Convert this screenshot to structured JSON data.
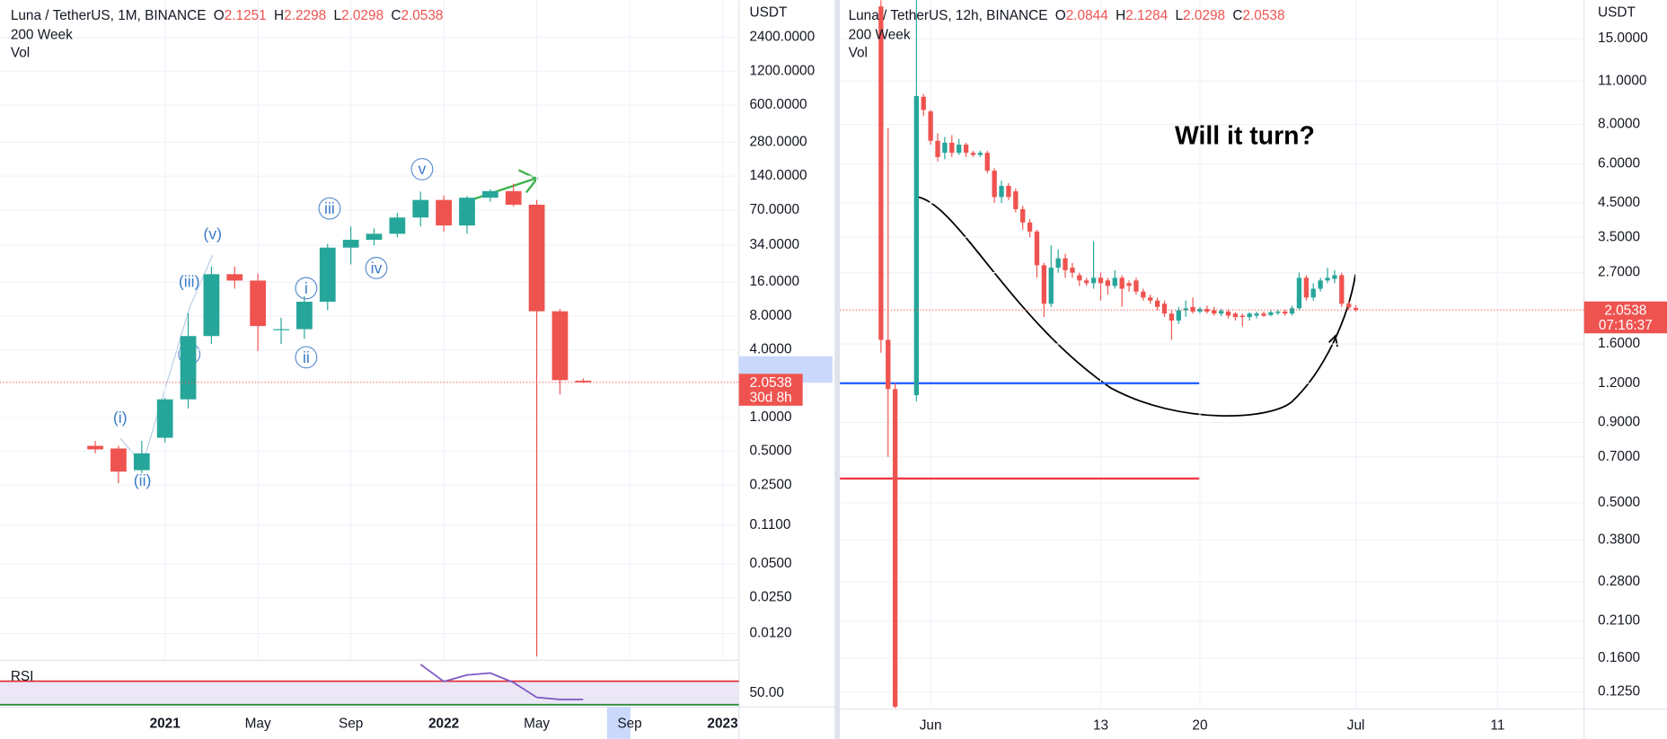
{
  "chart_data": [
    {
      "type": "candlestick",
      "title": "Luna / TetherUS, 1M, BINANCE",
      "ohlc_labels": [
        "O",
        "H",
        "L",
        "C"
      ],
      "indicators": [
        "200 Week",
        "Vol"
      ],
      "axis_unit": "USDT",
      "countdown": "30d 8h",
      "log_scale": true,
      "grid": true,
      "up_color": "#26a69a",
      "down_color": "#ef5350",
      "x": [
        0,
        1,
        2,
        3,
        4,
        5,
        6,
        7,
        8,
        9,
        10,
        11,
        12,
        13,
        14,
        15,
        16,
        17,
        18,
        19,
        20,
        21
      ],
      "open": [
        0.56,
        0.53,
        0.34,
        0.66,
        1.45,
        5.3,
        18.8,
        16.5,
        6,
        6.1,
        10.7,
        32.4,
        38,
        43,
        60,
        86,
        51,
        90,
        103,
        78,
        8.8,
        2.1251
      ],
      "high": [
        0.62,
        0.56,
        0.62,
        1.5,
        8.5,
        22,
        22,
        19,
        7.7,
        12,
        35,
        50,
        48,
        66,
        102,
        94,
        93,
        107,
        120,
        86,
        9.2,
        2.2298
      ],
      "low": [
        0.48,
        0.26,
        0.32,
        0.6,
        1.2,
        4.5,
        14,
        3.9,
        4.5,
        5,
        9,
        23,
        34,
        40,
        50,
        45,
        43,
        83,
        75,
        0.0075,
        1.6,
        2.0298
      ],
      "close": [
        0.52,
        0.33,
        0.48,
        1.45,
        5.3,
        18.8,
        16.5,
        6.5,
        6.1,
        10.7,
        32.4,
        38,
        43,
        60,
        86,
        51,
        90,
        103,
        78,
        8.8,
        2.15,
        2.0538
      ],
      "xlim": [
        -4.1,
        27.7
      ],
      "xticks": [
        {
          "value": 3,
          "label": "2021"
        },
        {
          "value": 7,
          "label": "May"
        },
        {
          "value": 11,
          "label": "Sep"
        },
        {
          "value": 15,
          "label": "2022"
        },
        {
          "value": 19,
          "label": "May"
        },
        {
          "value": 23,
          "label": "Sep"
        },
        {
          "value": 27,
          "label": "2023"
        }
      ],
      "ylim": [
        0.0071,
        5140
      ],
      "yticks": [
        {
          "value": 2400,
          "label": "2400.0000"
        },
        {
          "value": 1200,
          "label": "1200.0000"
        },
        {
          "value": 600,
          "label": "600.0000"
        },
        {
          "value": 280,
          "label": "280.0000"
        },
        {
          "value": 140,
          "label": "140.0000"
        },
        {
          "value": 70,
          "label": "70.0000"
        },
        {
          "value": 34,
          "label": "34.0000"
        },
        {
          "value": 16,
          "label": "16.0000"
        },
        {
          "value": 8,
          "label": "8.0000"
        },
        {
          "value": 4,
          "label": "4.0000"
        },
        {
          "value": 1,
          "label": "1.0000"
        },
        {
          "value": 0.5,
          "label": "0.5000"
        },
        {
          "value": 0.25,
          "label": "0.2500"
        },
        {
          "value": 0.11,
          "label": "0.1100"
        },
        {
          "value": 0.05,
          "label": "0.0500"
        },
        {
          "value": 0.025,
          "label": "0.0250"
        },
        {
          "value": 0.012,
          "label": "0.0120"
        }
      ],
      "wave_labels": [
        "(i)",
        "(ii)",
        "(iii)",
        "(v)",
        "i",
        "ii",
        "iii",
        "iv",
        "v"
      ],
      "rsi": {
        "title": "RSI",
        "color": "#7e57c2",
        "ylim": [
          28,
          104
        ],
        "yticks": [
          {
            "value": 50,
            "label": "50.00"
          }
        ],
        "levels": [
          70,
          30
        ],
        "values": [
          null,
          null,
          null,
          null,
          null,
          null,
          null,
          null,
          null,
          null,
          null,
          null,
          null,
          null,
          98.6,
          69.6,
          80.5,
          84,
          67.8,
          42.5,
          38.9,
          38.9
        ]
      }
    },
    {
      "type": "candlestick",
      "title": "Luna / TetherUS, 12h, BINANCE",
      "ohlc_labels": [
        "O",
        "H",
        "L",
        "C"
      ],
      "indicators": [
        "200 Week",
        "Vol"
      ],
      "axis_unit": "USDT",
      "countdown": "07:16:37",
      "log_scale": true,
      "grid": true,
      "up_color": "#26a69a",
      "down_color": "#ef5350",
      "annotation": "Will it turn?",
      "hlines": [
        {
          "value": 1.2,
          "color": "#2962ff"
        },
        {
          "value": 0.597,
          "color": "#f23645"
        }
      ],
      "x": [
        -2.5,
        -2,
        -1.5,
        0,
        0.5,
        1,
        1.5,
        2,
        2.5,
        3,
        3.5,
        4,
        4.5,
        5,
        5.5,
        6,
        6.5,
        7,
        7.5,
        8,
        8.5,
        9,
        9.5,
        10,
        10.5,
        11,
        11.5,
        12,
        12.5,
        13,
        13.5,
        14,
        14.5,
        15,
        15.5,
        16,
        16.5,
        17,
        17.5,
        18,
        18.5,
        19,
        19.5,
        20,
        20.5,
        21,
        21.5,
        22,
        22.5,
        23,
        23.5,
        24,
        24.5,
        25,
        25.5,
        26,
        26.5,
        27,
        27.5,
        28,
        28.5,
        29,
        29.5,
        30,
        30.5,
        31
      ],
      "open": [
        19,
        1.65,
        1.15,
        1.1,
        9.8,
        8.8,
        7.1,
        6.5,
        7,
        6.5,
        6.9,
        6.5,
        6.4,
        6.5,
        5.7,
        4.7,
        5.1,
        4.9,
        4.3,
        3.9,
        3.65,
        2.85,
        2.15,
        2.8,
        3,
        2.8,
        2.65,
        2.55,
        2.5,
        2.6,
        2.55,
        2.45,
        2.6,
        2.5,
        2.55,
        2.35,
        2.25,
        2.2,
        2.15,
        2,
        1.9,
        2.05,
        2.1,
        2.03,
        2.07,
        2.05,
        2,
        2.03,
        2,
        1.97,
        1.95,
        1.97,
        2,
        1.98,
        2.01,
        2.03,
        2,
        2.08,
        2.6,
        2.25,
        2.4,
        2.55,
        2.58,
        2.65,
        2.15,
        2.0844
      ],
      "high": [
        19.9,
        7.8,
        1.2,
        19.9,
        10,
        8.9,
        7.5,
        7.3,
        7.4,
        7.2,
        7,
        6.6,
        6.6,
        6.6,
        5.8,
        5.3,
        5.2,
        5,
        4.4,
        4,
        3.7,
        2.9,
        3.3,
        3.2,
        3.1,
        2.9,
        2.7,
        2.6,
        3.4,
        2.7,
        2.6,
        2.75,
        2.65,
        2.55,
        2.6,
        2.4,
        2.3,
        2.25,
        2.2,
        2.05,
        2.1,
        2.2,
        2.25,
        2.1,
        2.12,
        2.1,
        2.07,
        2.06,
        2.02,
        2,
        2.02,
        2.03,
        2.03,
        2.05,
        2.06,
        2.06,
        2.12,
        2.7,
        2.65,
        2.5,
        2.6,
        2.8,
        2.75,
        2.7,
        2.2,
        2.1284
      ],
      "low": [
        1.5,
        0.7,
        0.111,
        1.05,
        8.5,
        6.9,
        6.1,
        6.2,
        6.3,
        6.4,
        6.3,
        6.3,
        6.3,
        5.6,
        4.5,
        4.5,
        4.6,
        4.2,
        3.7,
        3.5,
        2.6,
        1.95,
        2.1,
        2.7,
        2.6,
        2.6,
        2.45,
        2.45,
        2.4,
        2.2,
        2.3,
        2.4,
        2.1,
        2.35,
        2.3,
        2.2,
        2.15,
        2.05,
        1.95,
        1.65,
        1.85,
        1.95,
        2,
        2,
        2,
        1.97,
        1.96,
        1.93,
        1.9,
        1.82,
        1.9,
        1.93,
        1.95,
        1.96,
        1.98,
        1.97,
        1.97,
        2.05,
        2.2,
        2.2,
        2.35,
        2.5,
        2.5,
        2.1,
        2.05,
        2.0298
      ],
      "close": [
        1.65,
        1.15,
        0.112,
        9.85,
        8.9,
        7.1,
        6.3,
        7,
        6.5,
        6.9,
        6.5,
        6.4,
        6.5,
        5.7,
        4.7,
        5.1,
        4.7,
        4.3,
        3.9,
        3.65,
        2.85,
        2.15,
        2.8,
        3,
        2.75,
        2.7,
        2.55,
        2.5,
        2.6,
        2.5,
        2.45,
        2.6,
        2.4,
        2.45,
        2.35,
        2.25,
        2.2,
        2.1,
        2,
        1.9,
        2.05,
        2.08,
        2.03,
        2.07,
        2.03,
        2,
        2.04,
        1.97,
        1.95,
        1.95,
        2,
        2,
        1.97,
        2.02,
        2.03,
        2,
        2.08,
        2.6,
        2.25,
        2.4,
        2.55,
        2.6,
        2.65,
        2.15,
        2.09,
        2.0538
      ],
      "xlim": [
        -5.4,
        47.1
      ],
      "xticks": [
        {
          "value": 1,
          "label": "Jun"
        },
        13,
        20,
        {
          "value": 31,
          "label": "Jul"
        },
        {
          "value": 41,
          "label": "11"
        }
      ],
      "ylim": [
        0.111,
        19.9
      ],
      "yticks": [
        {
          "value": 15,
          "label": "15.0000"
        },
        {
          "value": 11,
          "label": "11.0000"
        },
        {
          "value": 8,
          "label": "8.0000"
        },
        {
          "value": 6,
          "label": "6.0000"
        },
        {
          "value": 4.5,
          "label": "4.5000"
        },
        {
          "value": 3.5,
          "label": "3.5000"
        },
        {
          "value": 2.7,
          "label": "2.7000"
        },
        {
          "value": 1.6,
          "label": "1.6000"
        },
        {
          "value": 1.2,
          "label": "1.2000"
        },
        {
          "value": 0.9,
          "label": "0.9000"
        },
        {
          "value": 0.7,
          "label": "0.7000"
        },
        {
          "value": 0.5,
          "label": "0.5000"
        },
        {
          "value": 0.38,
          "label": "0.3800"
        },
        {
          "value": 0.28,
          "label": "0.2800"
        },
        {
          "value": 0.21,
          "label": "0.2100"
        },
        {
          "value": 0.16,
          "label": "0.1600"
        },
        {
          "value": 0.125,
          "label": "0.1250"
        }
      ]
    }
  ]
}
